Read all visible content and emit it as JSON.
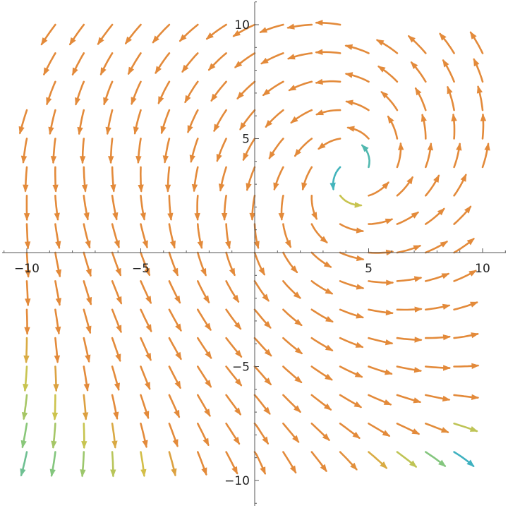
{
  "chart_data": {
    "type": "streamplot",
    "title": "",
    "xlabel": "",
    "ylabel": "",
    "xlim": [
      -11,
      11
    ],
    "ylim": [
      -11.2,
      11
    ],
    "x_ticks": [
      -10,
      -5,
      5,
      10
    ],
    "y_ticks": [
      -10,
      -5,
      5,
      10
    ],
    "x_tick_labels": [
      "−10",
      "−5",
      "5",
      "10"
    ],
    "y_tick_labels": [
      "−10",
      "−5",
      "5",
      "10"
    ],
    "plot_range": {
      "x": [
        -10,
        10
      ],
      "y": [
        -10,
        10
      ]
    },
    "grid": false,
    "legend": "none",
    "features": [
      {
        "kind": "spiral-source",
        "center": [
          4,
          4.2
        ],
        "rotation": "counterclockwise"
      },
      {
        "kind": "sink-region",
        "center": [
          -2.5,
          2.5
        ]
      }
    ],
    "color_scale": {
      "description": "streamline color by vector magnitude (low to high)",
      "stops": [
        "#4a0f8f",
        "#3b3fd0",
        "#3d86d6",
        "#3fb3bf",
        "#8cc876",
        "#d1c34a",
        "#e38a3a"
      ]
    }
  }
}
